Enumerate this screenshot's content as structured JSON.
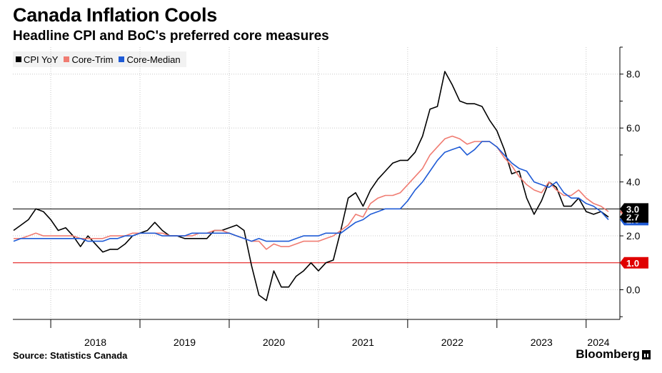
{
  "header": {
    "title": "Canada Inflation Cools",
    "subtitle": "Headline CPI and BoC's preferred core measures"
  },
  "footer": {
    "source": "Source: Statistics Canada",
    "brand": "Bloomberg"
  },
  "colors": {
    "cpi": "#000000",
    "trim": "#f07c72",
    "median": "#1f5bd6",
    "target_upper": "#000000",
    "target_lower": "#e00000",
    "grid": "#c8c8c8"
  },
  "chart_data": {
    "type": "line",
    "title": "Canada Inflation Cools",
    "subtitle": "Headline CPI and BoC's preferred core measures",
    "x_start": "2017-08",
    "x_end": "2024-04",
    "x_ticks": [
      "2018",
      "2019",
      "2020",
      "2021",
      "2022",
      "2023",
      "2024"
    ],
    "y_ticks": [
      "0.0",
      "2.0",
      "4.0",
      "6.0",
      "8.0"
    ],
    "ylim": [
      -1.1,
      9.0
    ],
    "grid": true,
    "legend_position": "top-left",
    "reference_lines": [
      {
        "value": 3.0,
        "label": "3.0",
        "color": "#000000"
      },
      {
        "value": 1.0,
        "label": "1.0",
        "color": "#e00000"
      }
    ],
    "series": [
      {
        "name": "CPI YoY",
        "color": "#000000",
        "end_label": "2.7",
        "points": [
          [
            "2017-08",
            2.2
          ],
          [
            "2017-09",
            2.4
          ],
          [
            "2017-10",
            2.6
          ],
          [
            "2017-11",
            3.0
          ],
          [
            "2017-12",
            2.9
          ],
          [
            "2018-01",
            2.6
          ],
          [
            "2018-02",
            2.2
          ],
          [
            "2018-03",
            2.3
          ],
          [
            "2018-04",
            2.0
          ],
          [
            "2018-05",
            1.6
          ],
          [
            "2018-06",
            2.0
          ],
          [
            "2018-07",
            1.7
          ],
          [
            "2018-08",
            1.4
          ],
          [
            "2018-09",
            1.5
          ],
          [
            "2018-10",
            1.5
          ],
          [
            "2018-11",
            1.7
          ],
          [
            "2018-12",
            2.0
          ],
          [
            "2019-01",
            2.1
          ],
          [
            "2019-02",
            2.2
          ],
          [
            "2019-03",
            2.5
          ],
          [
            "2019-04",
            2.2
          ],
          [
            "2019-05",
            2.0
          ],
          [
            "2019-06",
            2.0
          ],
          [
            "2019-07",
            1.9
          ],
          [
            "2019-08",
            1.9
          ],
          [
            "2019-09",
            1.9
          ],
          [
            "2019-10",
            1.9
          ],
          [
            "2019-11",
            2.2
          ],
          [
            "2019-12",
            2.2
          ],
          [
            "2020-01",
            2.3
          ],
          [
            "2020-02",
            2.4
          ],
          [
            "2020-03",
            2.2
          ],
          [
            "2020-04",
            0.9
          ],
          [
            "2020-05",
            -0.2
          ],
          [
            "2020-06",
            -0.4
          ],
          [
            "2020-07",
            0.7
          ],
          [
            "2020-08",
            0.1
          ],
          [
            "2020-09",
            0.1
          ],
          [
            "2020-10",
            0.5
          ],
          [
            "2020-11",
            0.7
          ],
          [
            "2020-12",
            1.0
          ],
          [
            "2021-01",
            0.7
          ],
          [
            "2021-02",
            1.0
          ],
          [
            "2021-03",
            1.1
          ],
          [
            "2021-04",
            2.2
          ],
          [
            "2021-05",
            3.4
          ],
          [
            "2021-06",
            3.6
          ],
          [
            "2021-07",
            3.1
          ],
          [
            "2021-08",
            3.7
          ],
          [
            "2021-09",
            4.1
          ],
          [
            "2021-10",
            4.4
          ],
          [
            "2021-11",
            4.7
          ],
          [
            "2021-12",
            4.8
          ],
          [
            "2022-01",
            4.8
          ],
          [
            "2022-02",
            5.1
          ],
          [
            "2022-03",
            5.7
          ],
          [
            "2022-04",
            6.7
          ],
          [
            "2022-05",
            6.8
          ],
          [
            "2022-06",
            8.1
          ],
          [
            "2022-07",
            7.6
          ],
          [
            "2022-08",
            7.0
          ],
          [
            "2022-09",
            6.9
          ],
          [
            "2022-10",
            6.9
          ],
          [
            "2022-11",
            6.8
          ],
          [
            "2022-12",
            6.3
          ],
          [
            "2023-01",
            5.9
          ],
          [
            "2023-02",
            5.2
          ],
          [
            "2023-03",
            4.3
          ],
          [
            "2023-04",
            4.4
          ],
          [
            "2023-05",
            3.4
          ],
          [
            "2023-06",
            2.8
          ],
          [
            "2023-07",
            3.3
          ],
          [
            "2023-08",
            4.0
          ],
          [
            "2023-09",
            3.8
          ],
          [
            "2023-10",
            3.1
          ],
          [
            "2023-11",
            3.1
          ],
          [
            "2023-12",
            3.4
          ],
          [
            "2024-01",
            2.9
          ],
          [
            "2024-02",
            2.8
          ],
          [
            "2024-03",
            2.9
          ],
          [
            "2024-04",
            2.7
          ]
        ]
      },
      {
        "name": "Core-Trim",
        "color": "#f07c72",
        "end_label": "2.9",
        "points": [
          [
            "2017-08",
            1.9
          ],
          [
            "2017-09",
            1.9
          ],
          [
            "2017-10",
            2.0
          ],
          [
            "2017-11",
            2.1
          ],
          [
            "2017-12",
            2.0
          ],
          [
            "2018-01",
            2.0
          ],
          [
            "2018-02",
            2.0
          ],
          [
            "2018-03",
            2.0
          ],
          [
            "2018-04",
            2.0
          ],
          [
            "2018-05",
            1.9
          ],
          [
            "2018-06",
            1.9
          ],
          [
            "2018-07",
            1.9
          ],
          [
            "2018-08",
            1.9
          ],
          [
            "2018-09",
            2.0
          ],
          [
            "2018-10",
            2.0
          ],
          [
            "2018-11",
            2.0
          ],
          [
            "2018-12",
            2.1
          ],
          [
            "2019-01",
            2.1
          ],
          [
            "2019-02",
            2.1
          ],
          [
            "2019-03",
            2.1
          ],
          [
            "2019-04",
            2.1
          ],
          [
            "2019-05",
            2.0
          ],
          [
            "2019-06",
            2.0
          ],
          [
            "2019-07",
            2.0
          ],
          [
            "2019-08",
            2.0
          ],
          [
            "2019-09",
            2.1
          ],
          [
            "2019-10",
            2.1
          ],
          [
            "2019-11",
            2.2
          ],
          [
            "2019-12",
            2.2
          ],
          [
            "2020-01",
            2.1
          ],
          [
            "2020-02",
            2.0
          ],
          [
            "2020-03",
            1.9
          ],
          [
            "2020-04",
            1.8
          ],
          [
            "2020-05",
            1.8
          ],
          [
            "2020-06",
            1.5
          ],
          [
            "2020-07",
            1.7
          ],
          [
            "2020-08",
            1.6
          ],
          [
            "2020-09",
            1.6
          ],
          [
            "2020-10",
            1.7
          ],
          [
            "2020-11",
            1.8
          ],
          [
            "2020-12",
            1.8
          ],
          [
            "2021-01",
            1.8
          ],
          [
            "2021-02",
            1.9
          ],
          [
            "2021-03",
            2.0
          ],
          [
            "2021-04",
            2.2
          ],
          [
            "2021-05",
            2.4
          ],
          [
            "2021-06",
            2.8
          ],
          [
            "2021-07",
            2.7
          ],
          [
            "2021-08",
            3.2
          ],
          [
            "2021-09",
            3.4
          ],
          [
            "2021-10",
            3.5
          ],
          [
            "2021-11",
            3.5
          ],
          [
            "2021-12",
            3.6
          ],
          [
            "2022-01",
            3.9
          ],
          [
            "2022-02",
            4.2
          ],
          [
            "2022-03",
            4.5
          ],
          [
            "2022-04",
            5.0
          ],
          [
            "2022-05",
            5.3
          ],
          [
            "2022-06",
            5.6
          ],
          [
            "2022-07",
            5.7
          ],
          [
            "2022-08",
            5.6
          ],
          [
            "2022-09",
            5.4
          ],
          [
            "2022-10",
            5.5
          ],
          [
            "2022-11",
            5.5
          ],
          [
            "2022-12",
            5.5
          ],
          [
            "2023-01",
            5.3
          ],
          [
            "2023-02",
            4.9
          ],
          [
            "2023-03",
            4.6
          ],
          [
            "2023-04",
            4.2
          ],
          [
            "2023-05",
            3.9
          ],
          [
            "2023-06",
            3.7
          ],
          [
            "2023-07",
            3.6
          ],
          [
            "2023-08",
            4.0
          ],
          [
            "2023-09",
            3.7
          ],
          [
            "2023-10",
            3.5
          ],
          [
            "2023-11",
            3.5
          ],
          [
            "2023-12",
            3.7
          ],
          [
            "2024-01",
            3.4
          ],
          [
            "2024-02",
            3.2
          ],
          [
            "2024-03",
            3.1
          ],
          [
            "2024-04",
            2.9
          ]
        ]
      },
      {
        "name": "Core-Median",
        "color": "#1f5bd6",
        "end_label": "2.6",
        "points": [
          [
            "2017-08",
            1.8
          ],
          [
            "2017-09",
            1.9
          ],
          [
            "2017-10",
            1.9
          ],
          [
            "2017-11",
            1.9
          ],
          [
            "2017-12",
            1.9
          ],
          [
            "2018-01",
            1.9
          ],
          [
            "2018-02",
            1.9
          ],
          [
            "2018-03",
            1.9
          ],
          [
            "2018-04",
            1.9
          ],
          [
            "2018-05",
            1.9
          ],
          [
            "2018-06",
            1.8
          ],
          [
            "2018-07",
            1.8
          ],
          [
            "2018-08",
            1.8
          ],
          [
            "2018-09",
            1.9
          ],
          [
            "2018-10",
            1.9
          ],
          [
            "2018-11",
            2.0
          ],
          [
            "2018-12",
            2.0
          ],
          [
            "2019-01",
            2.1
          ],
          [
            "2019-02",
            2.1
          ],
          [
            "2019-03",
            2.1
          ],
          [
            "2019-04",
            2.0
          ],
          [
            "2019-05",
            2.0
          ],
          [
            "2019-06",
            2.0
          ],
          [
            "2019-07",
            2.0
          ],
          [
            "2019-08",
            2.1
          ],
          [
            "2019-09",
            2.1
          ],
          [
            "2019-10",
            2.1
          ],
          [
            "2019-11",
            2.1
          ],
          [
            "2019-12",
            2.1
          ],
          [
            "2020-01",
            2.1
          ],
          [
            "2020-02",
            2.0
          ],
          [
            "2020-03",
            1.9
          ],
          [
            "2020-04",
            1.8
          ],
          [
            "2020-05",
            1.9
          ],
          [
            "2020-06",
            1.8
          ],
          [
            "2020-07",
            1.8
          ],
          [
            "2020-08",
            1.8
          ],
          [
            "2020-09",
            1.8
          ],
          [
            "2020-10",
            1.9
          ],
          [
            "2020-11",
            2.0
          ],
          [
            "2020-12",
            2.0
          ],
          [
            "2021-01",
            2.0
          ],
          [
            "2021-02",
            2.1
          ],
          [
            "2021-03",
            2.1
          ],
          [
            "2021-04",
            2.1
          ],
          [
            "2021-05",
            2.3
          ],
          [
            "2021-06",
            2.5
          ],
          [
            "2021-07",
            2.6
          ],
          [
            "2021-08",
            2.8
          ],
          [
            "2021-09",
            2.9
          ],
          [
            "2021-10",
            3.0
          ],
          [
            "2021-11",
            3.0
          ],
          [
            "2021-12",
            3.0
          ],
          [
            "2022-01",
            3.3
          ],
          [
            "2022-02",
            3.7
          ],
          [
            "2022-03",
            4.0
          ],
          [
            "2022-04",
            4.4
          ],
          [
            "2022-05",
            4.8
          ],
          [
            "2022-06",
            5.1
          ],
          [
            "2022-07",
            5.2
          ],
          [
            "2022-08",
            5.3
          ],
          [
            "2022-09",
            5.0
          ],
          [
            "2022-10",
            5.2
          ],
          [
            "2022-11",
            5.5
          ],
          [
            "2022-12",
            5.5
          ],
          [
            "2023-01",
            5.3
          ],
          [
            "2023-02",
            5.0
          ],
          [
            "2023-03",
            4.7
          ],
          [
            "2023-04",
            4.5
          ],
          [
            "2023-05",
            4.4
          ],
          [
            "2023-06",
            4.0
          ],
          [
            "2023-07",
            3.9
          ],
          [
            "2023-08",
            3.8
          ],
          [
            "2023-09",
            4.0
          ],
          [
            "2023-10",
            3.6
          ],
          [
            "2023-11",
            3.4
          ],
          [
            "2023-12",
            3.4
          ],
          [
            "2024-01",
            3.2
          ],
          [
            "2024-02",
            3.1
          ],
          [
            "2024-03",
            2.9
          ],
          [
            "2024-04",
            2.6
          ]
        ]
      }
    ]
  }
}
